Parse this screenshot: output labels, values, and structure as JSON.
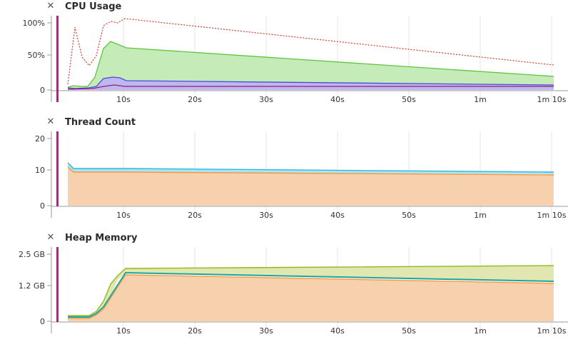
{
  "panels": [
    {
      "title": "CPU Usage",
      "close_icon": "close-icon",
      "y_ticks": [
        "100%",
        "50%",
        "0"
      ],
      "x_ticks": [
        "10s",
        "20s",
        "30s",
        "40s",
        "50s",
        "1m",
        "1m 10s"
      ],
      "colors": {
        "series_green": "#5ec43c",
        "series_blue": "#4a4ad8",
        "series_purple": "#9b1a7b",
        "series_red_dotted": "#d93a2a",
        "marker": "#c2188a"
      }
    },
    {
      "title": "Thread Count",
      "close_icon": "close-icon",
      "y_ticks": [
        "20",
        "10",
        "0"
      ],
      "x_ticks": [
        "10s",
        "20s",
        "30s",
        "40s",
        "50s",
        "1m",
        "1m 10s"
      ],
      "colors": {
        "series_cyan": "#2fb7e0",
        "series_orange": "#f09a3e",
        "fill_orange": "#f7d0ad",
        "marker": "#c2188a"
      }
    },
    {
      "title": "Heap Memory",
      "close_icon": "close-icon",
      "y_ticks": [
        "2.5 GB",
        "1.2 GB",
        "0"
      ],
      "x_ticks": [
        "10s",
        "20s",
        "30s",
        "40s",
        "50s",
        "1m",
        "1m 10s"
      ],
      "colors": {
        "series_olive": "#8fba1c",
        "series_teal": "#1aa6a0",
        "series_orange": "#f09a3e",
        "marker": "#c2188a"
      }
    }
  ]
}
